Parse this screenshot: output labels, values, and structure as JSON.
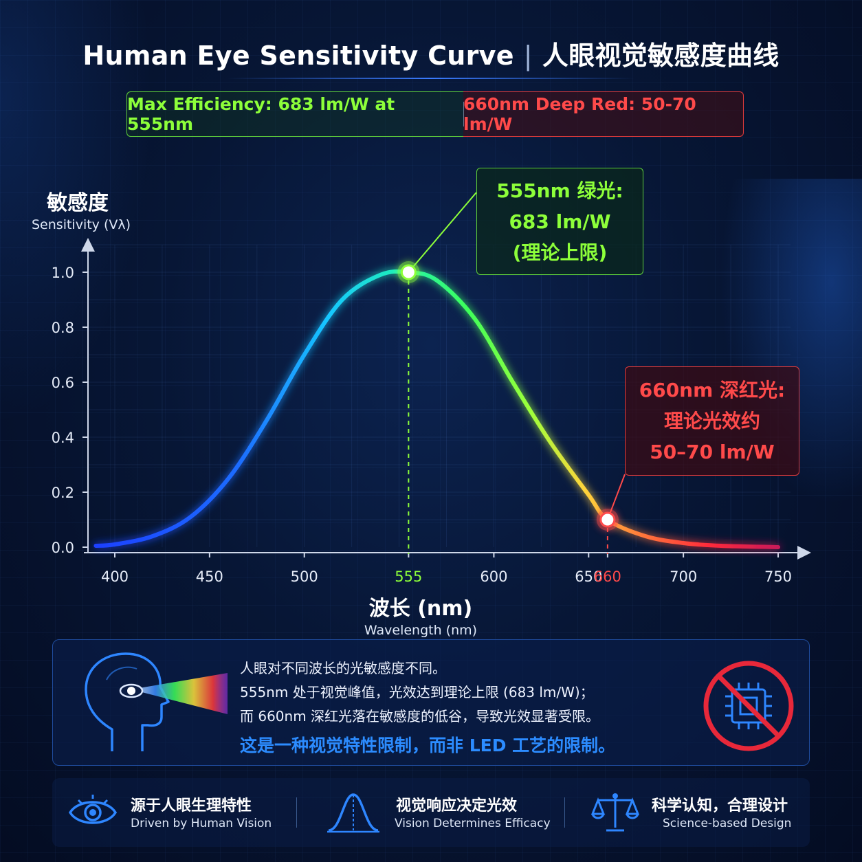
{
  "title": {
    "en": "Human Eye Sensitivity Curve",
    "sep": "|",
    "zh": "人眼视觉敏感度曲线"
  },
  "banner": {
    "green": "Max Efficiency: 683 lm/W at 555nm",
    "red": "660nm Deep Red: 50-70 lm/W"
  },
  "callouts": {
    "green": [
      "555nm 绿光:",
      "683 lm/W",
      "(理论上限)"
    ],
    "red": [
      "660nm 深红光:",
      "理论光效约",
      "50–70 lm/W"
    ]
  },
  "axis": {
    "y_title_zh": "敏感度",
    "y_title_en": "Sensitivity (Vλ)",
    "x_title_zh": "波长 (nm)",
    "x_title_en": "Wavelength (nm)"
  },
  "chart_data": {
    "type": "line",
    "x": [
      390,
      400,
      420,
      440,
      460,
      480,
      500,
      520,
      540,
      555,
      570,
      590,
      610,
      630,
      650,
      660,
      680,
      700,
      720,
      750
    ],
    "y": [
      0.005,
      0.01,
      0.04,
      0.11,
      0.25,
      0.46,
      0.7,
      0.9,
      0.99,
      1.0,
      0.97,
      0.83,
      0.6,
      0.38,
      0.19,
      0.1,
      0.04,
      0.015,
      0.005,
      0.0
    ],
    "xlim": [
      385,
      760
    ],
    "ylim": [
      0,
      1.1
    ],
    "x_ticks": [
      400,
      450,
      500,
      555,
      600,
      650,
      660,
      700,
      750
    ],
    "y_ticks": [
      0.0,
      0.2,
      0.4,
      0.6,
      0.8,
      1.0
    ],
    "y_tick_labels": [
      "0.0",
      "0.2",
      "0.4",
      "0.6",
      "0.8",
      "1.0"
    ],
    "highlights": [
      {
        "x": 555,
        "y": 1.0,
        "color": "#8dff3a"
      },
      {
        "x": 660,
        "y": 0.1,
        "color": "#ff4a4a"
      }
    ],
    "grid": true,
    "colors": {
      "green": "#8dff3a",
      "red": "#ff4a4a",
      "blue": "#2c8cff"
    }
  },
  "info": {
    "lines": [
      "人眼对不同波长的光敏感度不同。",
      "555nm 处于视觉峰值，光效达到理论上限 (683 lm/W)；",
      "而 660nm 深红光落在敏感度的低谷，导致光效显著受限。"
    ],
    "emphasis": "这是一种视觉特性限制，而非 LED 工艺的限制。"
  },
  "features": [
    {
      "icon": "eye-icon",
      "zh": "源于人眼生理特性",
      "en": "Driven by Human Vision"
    },
    {
      "icon": "bell-curve-icon",
      "zh": "视觉响应决定光效",
      "en": "Vision Determines Efficacy"
    },
    {
      "icon": "scale-icon",
      "zh": "科学认知，合理设计",
      "en": "Science-based Design"
    }
  ]
}
